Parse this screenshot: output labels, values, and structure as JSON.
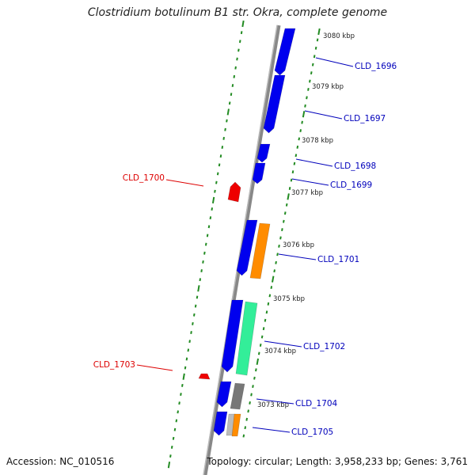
{
  "title": "Clostridium botulinum B1 str. Okra, complete genome",
  "footer": {
    "accession": "Accession: NC_010516",
    "topology": "Topology: circular; Length: 3,958,233 bp; Genes: 3,761"
  },
  "colors": {
    "forward_gene": "#0000ee",
    "reverse_gene": "#ee0000",
    "orange_feature": "#ff8c00",
    "green_feature": "#33ee99",
    "grey_feature": "#777777",
    "backbone": "#888888",
    "tick": "#228b22",
    "forward_label": "#0000bb",
    "reverse_label": "#dd0000"
  },
  "scale_labels": [
    "3080 kbp",
    "3079 kbp",
    "3078 kbp",
    "3077 kbp",
    "3076 kbp",
    "3075 kbp",
    "3074 kbp",
    "3073 kbp"
  ],
  "genes": [
    {
      "name": "CLD_1696",
      "strand": "forward"
    },
    {
      "name": "CLD_1697",
      "strand": "forward"
    },
    {
      "name": "CLD_1698",
      "strand": "forward"
    },
    {
      "name": "CLD_1699",
      "strand": "forward"
    },
    {
      "name": "CLD_1700",
      "strand": "reverse"
    },
    {
      "name": "CLD_1701",
      "strand": "forward"
    },
    {
      "name": "CLD_1702",
      "strand": "forward"
    },
    {
      "name": "CLD_1703",
      "strand": "reverse"
    },
    {
      "name": "CLD_1704",
      "strand": "forward"
    },
    {
      "name": "CLD_1705",
      "strand": "forward"
    }
  ]
}
